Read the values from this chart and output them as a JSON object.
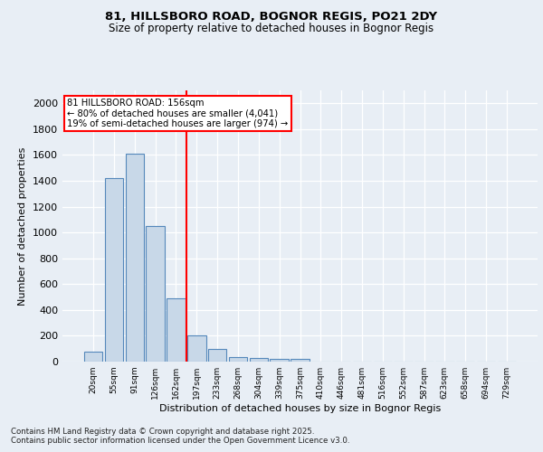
{
  "title1": "81, HILLSBORO ROAD, BOGNOR REGIS, PO21 2DY",
  "title2": "Size of property relative to detached houses in Bognor Regis",
  "xlabel": "Distribution of detached houses by size in Bognor Regis",
  "ylabel": "Number of detached properties",
  "bar_labels": [
    "20sqm",
    "55sqm",
    "91sqm",
    "126sqm",
    "162sqm",
    "197sqm",
    "233sqm",
    "268sqm",
    "304sqm",
    "339sqm",
    "375sqm",
    "410sqm",
    "446sqm",
    "481sqm",
    "516sqm",
    "552sqm",
    "587sqm",
    "623sqm",
    "658sqm",
    "694sqm",
    "729sqm"
  ],
  "bar_values": [
    80,
    1420,
    1610,
    1050,
    490,
    200,
    100,
    38,
    28,
    20,
    20,
    0,
    0,
    0,
    0,
    0,
    0,
    0,
    0,
    0,
    0
  ],
  "bar_color": "#c8d8e8",
  "bar_edge_color": "#5588bb",
  "vline_x": 4.5,
  "vline_color": "red",
  "annotation_title": "81 HILLSBORO ROAD: 156sqm",
  "annotation_line1": "← 80% of detached houses are smaller (4,041)",
  "annotation_line2": "19% of semi-detached houses are larger (974) →",
  "annotation_box_color": "white",
  "annotation_box_edge": "red",
  "ylim": [
    0,
    2100
  ],
  "yticks": [
    0,
    200,
    400,
    600,
    800,
    1000,
    1200,
    1400,
    1600,
    1800,
    2000
  ],
  "footnote1": "Contains HM Land Registry data © Crown copyright and database right 2025.",
  "footnote2": "Contains public sector information licensed under the Open Government Licence v3.0.",
  "bg_color": "#e8eef5",
  "plot_bg_color": "#e8eef5"
}
